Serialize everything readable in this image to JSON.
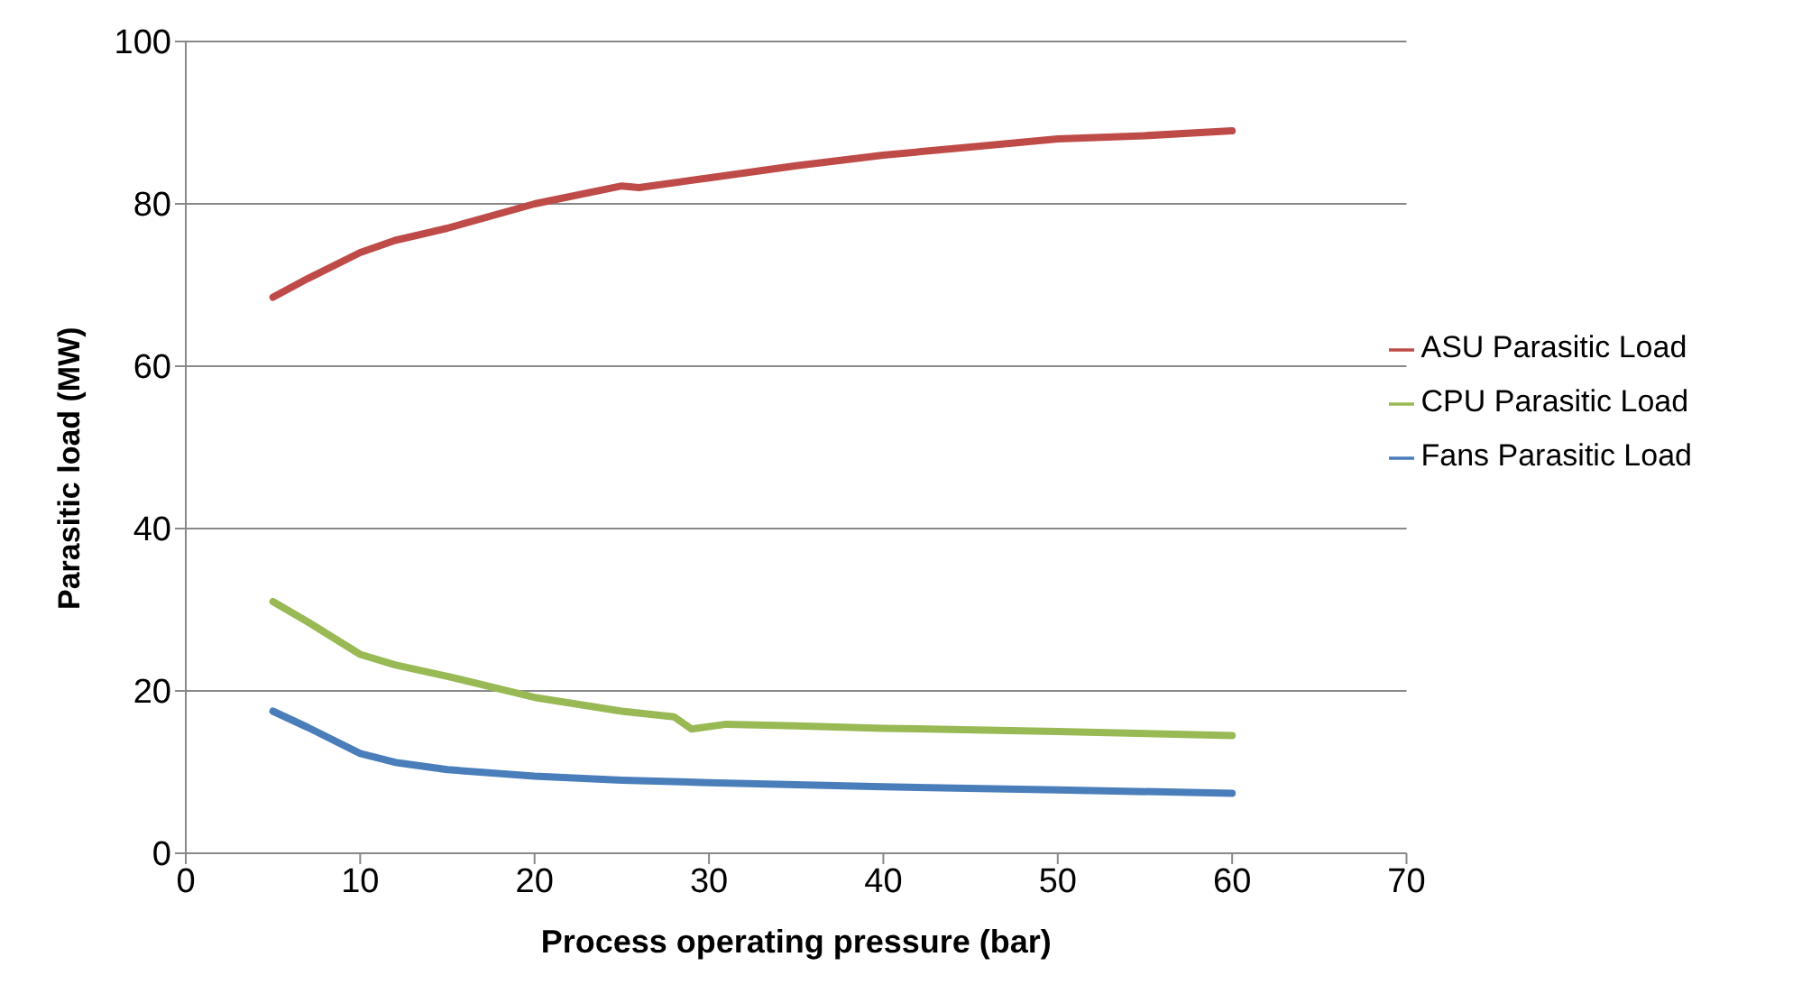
{
  "chart_data": {
    "type": "line",
    "xlabel": "Process operating pressure (bar)",
    "ylabel": "Parasitic load (MW)",
    "xlim": [
      0,
      70
    ],
    "xticks": [
      0,
      10,
      20,
      30,
      40,
      50,
      60,
      70
    ],
    "ylim": [
      0,
      100
    ],
    "yticks": [
      0,
      20,
      40,
      60,
      80,
      100
    ],
    "grid": "y",
    "legend": "right",
    "marker": "none",
    "line_style": "solid",
    "series": [
      {
        "name": "Fans Parasitic Load",
        "color": "#4a7ebb",
        "x": [
          5,
          7,
          10,
          12,
          15,
          20,
          25,
          30,
          40,
          50,
          60
        ],
        "values": [
          17.5,
          15.5,
          12.3,
          11.2,
          10.3,
          9.5,
          9.0,
          8.7,
          8.2,
          7.8,
          7.4
        ]
      },
      {
        "name": "ASU Parasitic Load",
        "color": "#be4b48",
        "x": [
          5,
          7,
          10,
          12,
          15,
          20,
          25,
          26,
          30,
          35,
          40,
          45,
          50,
          55,
          60
        ],
        "values": [
          68.5,
          70.8,
          74,
          75.5,
          77,
          80,
          82.2,
          82,
          83.2,
          84.7,
          86,
          87,
          88,
          88.4,
          89
        ]
      },
      {
        "name": "CPU Parasitic Load",
        "color": "#98b954",
        "x": [
          5,
          7,
          10,
          12,
          15,
          20,
          25,
          28,
          29,
          31,
          35,
          40,
          50,
          60
        ],
        "values": [
          31,
          28.5,
          24.5,
          23.2,
          21.8,
          19.2,
          17.5,
          16.8,
          15.3,
          15.9,
          15.7,
          15.4,
          15,
          14.5
        ]
      }
    ]
  }
}
